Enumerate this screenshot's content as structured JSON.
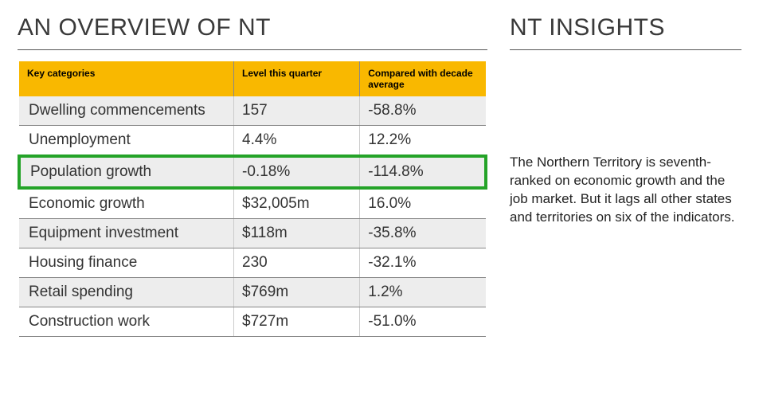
{
  "left": {
    "title": "AN OVERVIEW OF NT",
    "table": {
      "header_bg": "#f9b800",
      "shaded_bg": "#ededed",
      "highlight_border": "#24a328",
      "columns": [
        "Key categories",
        "Level this quarter",
        "Compared with decade average"
      ],
      "rows": [
        {
          "category": "Dwelling commencements",
          "level": "157",
          "compared": "-58.8%",
          "shaded": true,
          "highlight": false
        },
        {
          "category": "Unemployment",
          "level": "4.4%",
          "compared": "12.2%",
          "shaded": false,
          "highlight": false
        },
        {
          "category": "Population growth",
          "level": "-0.18%",
          "compared": "-114.8%",
          "shaded": true,
          "highlight": true
        },
        {
          "category": "Economic growth",
          "level": "$32,005m",
          "compared": "16.0%",
          "shaded": false,
          "highlight": false
        },
        {
          "category": "Equipment investment",
          "level": "$118m",
          "compared": "-35.8%",
          "shaded": true,
          "highlight": false
        },
        {
          "category": "Housing finance",
          "level": "230",
          "compared": "-32.1%",
          "shaded": false,
          "highlight": false
        },
        {
          "category": "Retail spending",
          "level": "$769m",
          "compared": "1.2%",
          "shaded": true,
          "highlight": false
        },
        {
          "category": "Construction work",
          "level": "$727m",
          "compared": "-51.0%",
          "shaded": false,
          "highlight": false
        }
      ]
    }
  },
  "right": {
    "title": "NT INSIGHTS",
    "body": "The Northern Territory is seventh-ranked on economic growth and the job market. But it lags all other states and territories on six of the indicators."
  }
}
